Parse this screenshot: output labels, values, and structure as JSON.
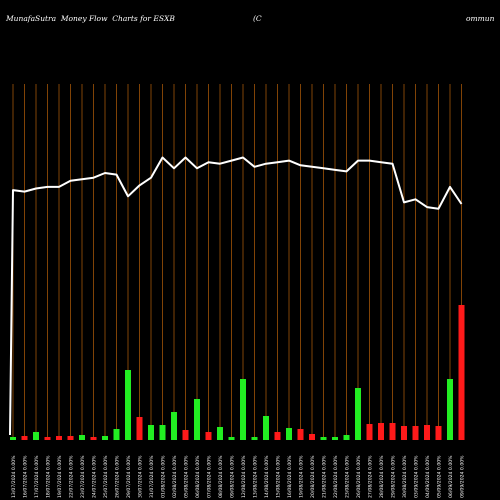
{
  "header": {
    "title_left": "MunafaSutra  Money Flow  Charts for ESXB",
    "title_mid": "(C",
    "title_right": "ommun"
  },
  "colors": {
    "background": "#000000",
    "grid": "#b8600a",
    "up": "#22ee22",
    "down": "#ff1a1a",
    "line": "#ffffff",
    "label": "#ffffff"
  },
  "chart_data": {
    "type": "bar",
    "bar_count": 40,
    "date_labels": [
      "13/07/2024 0.00%",
      "16/07/2024 0.00%",
      "17/07/2024 0.00%",
      "18/07/2024 0.00%",
      "19/07/2024 0.00%",
      "22/07/2024 0.00%",
      "23/07/2024 0.00%",
      "24/07/2024 0.00%",
      "25/07/2024 0.00%",
      "26/07/2024 0.00%",
      "29/07/2024 0.00%",
      "30/07/2024 0.00%",
      "31/07/2024 0.00%",
      "01/08/2024 0.00%",
      "02/08/2024 0.00%",
      "05/08/2024 0.00%",
      "06/08/2024 0.00%",
      "07/08/2024 0.00%",
      "08/08/2024 0.00%",
      "09/08/2024 0.00%",
      "12/08/2024 0.00%",
      "13/08/2024 0.00%",
      "14/08/2024 0.00%",
      "15/08/2024 0.00%",
      "16/08/2024 0.00%",
      "19/08/2024 0.00%",
      "20/08/2024 0.00%",
      "21/08/2024 0.00%",
      "22/08/2024 0.00%",
      "23/08/2024 0.00%",
      "26/08/2024 0.00%",
      "27/08/2024 0.00%",
      "28/08/2024 0.00%",
      "29/08/2024 0.00%",
      "30/08/2024 0.00%",
      "03/09/2024 0.00%",
      "04/09/2024 0.00%",
      "05/09/2024 0.00%",
      "06/09/2024 0.00%",
      "09/09/2024 0.00%"
    ],
    "volumes": [
      3,
      4,
      8,
      3,
      4,
      4,
      5,
      3,
      4,
      11,
      70,
      23,
      15,
      15,
      28,
      10,
      41,
      8,
      13,
      3,
      61,
      3,
      24,
      8,
      12,
      11,
      6,
      3,
      3,
      5,
      52,
      16,
      17,
      17,
      14,
      14,
      15,
      14,
      61,
      135
    ],
    "directions": [
      "up",
      "down",
      "up",
      "down",
      "down",
      "down",
      "up",
      "down",
      "up",
      "up",
      "up",
      "down",
      "up",
      "up",
      "up",
      "down",
      "up",
      "down",
      "up",
      "up",
      "up",
      "up",
      "up",
      "down",
      "up",
      "down",
      "down",
      "up",
      "up",
      "up",
      "up",
      "down",
      "down",
      "down",
      "down",
      "down",
      "down",
      "down",
      "up",
      "down"
    ],
    "money_flow_line": [
      9,
      8,
      10,
      11,
      11,
      15,
      16,
      17,
      20,
      19,
      5,
      12,
      17,
      30,
      23,
      30,
      23,
      27,
      26,
      28,
      30,
      24,
      26,
      27,
      28,
      25,
      24,
      23,
      22,
      21,
      28,
      28,
      27,
      26,
      1,
      3,
      -2,
      -3,
      11,
      0
    ],
    "money_flow_start": -230
  }
}
